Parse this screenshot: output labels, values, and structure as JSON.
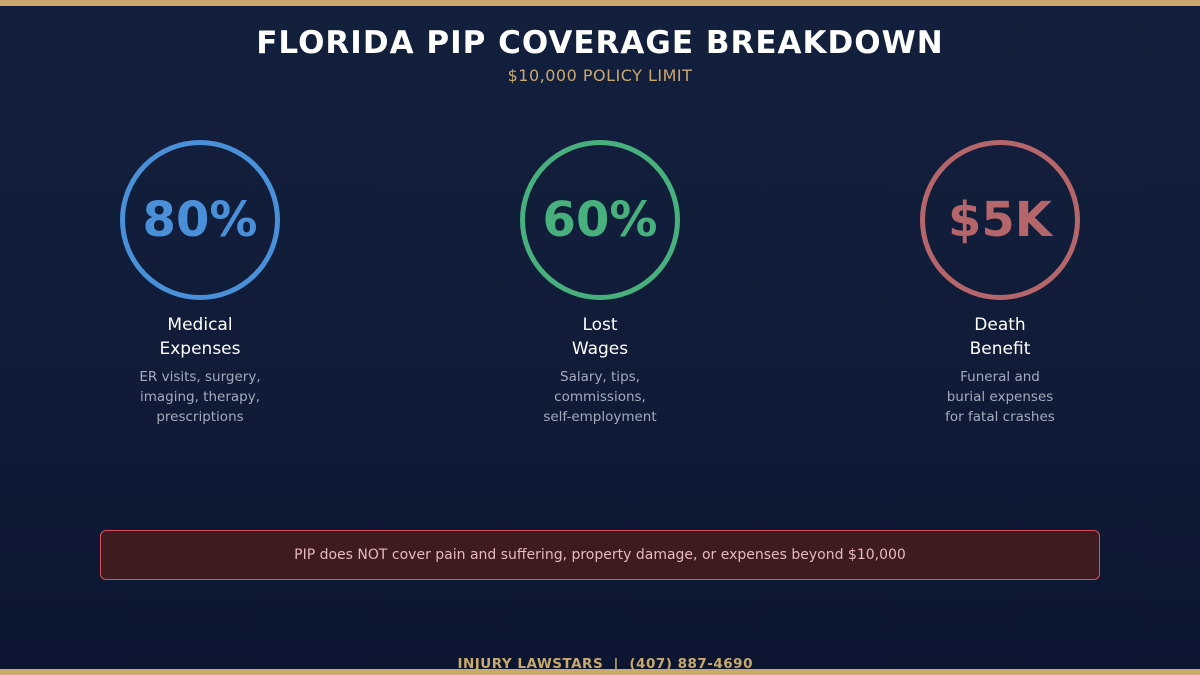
{
  "header": {
    "title": "FLORIDA PIP COVERAGE BREAKDOWN",
    "subtitle": "$10,000 POLICY LIMIT"
  },
  "coverages": [
    {
      "value": "80%",
      "label_line1": "Medical",
      "label_line2": "Expenses",
      "desc_lines": [
        "ER visits, surgery,",
        "imaging, therapy,",
        "prescriptions"
      ],
      "color": "#4a90d9"
    },
    {
      "value": "60%",
      "label_line1": "Lost",
      "label_line2": "Wages",
      "desc_lines": [
        "Salary, tips,",
        "commissions,",
        "self-employment"
      ],
      "color": "#48b07c"
    },
    {
      "value": "$5K",
      "label_line1": "Death",
      "label_line2": "Benefit",
      "desc_lines": [
        "Funeral and",
        "burial expenses",
        "for fatal crashes"
      ],
      "color": "#b5666a"
    }
  ],
  "warning": {
    "text": "PIP does NOT cover pain and suffering, property damage, or expenses beyond $10,000",
    "border_color": "#d9505a",
    "background_color": "#3e1b1f"
  },
  "footer": {
    "text": "INJURY LAWSTARS  |  (407) 887-4690"
  },
  "colors": {
    "accent_gold": "#c9a96e",
    "background": "#101c38"
  }
}
